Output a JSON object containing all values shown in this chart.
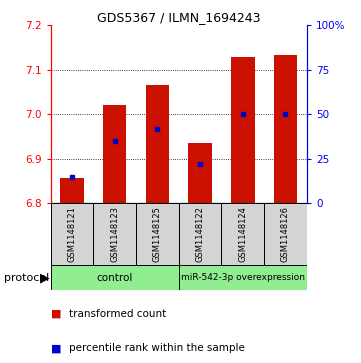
{
  "title": "GDS5367 / ILMN_1694243",
  "samples": [
    "GSM1148121",
    "GSM1148123",
    "GSM1148125",
    "GSM1148122",
    "GSM1148124",
    "GSM1148126"
  ],
  "bar_bottom": 6.8,
  "bar_tops": [
    6.857,
    7.022,
    7.065,
    6.935,
    7.13,
    7.133
  ],
  "blue_percentiles": [
    15,
    35,
    42,
    22,
    50,
    50
  ],
  "ylim_left": [
    6.8,
    7.2
  ],
  "ylim_right": [
    0,
    100
  ],
  "yticks_left": [
    6.8,
    6.9,
    7.0,
    7.1,
    7.2
  ],
  "yticks_right": [
    0,
    25,
    50,
    75,
    100
  ],
  "ytick_labels_right": [
    "0",
    "25",
    "50",
    "75",
    "100%"
  ],
  "bar_color": "#cc1100",
  "marker_color": "#0000cc",
  "group_labels": [
    "control",
    "miR-542-3p overexpression"
  ],
  "group_color": "#90ee90",
  "sample_box_color": "#d4d4d4",
  "protocol_label": "protocol",
  "legend_entries": [
    "transformed count",
    "percentile rank within the sample"
  ],
  "bar_width": 0.55,
  "title_fontsize": 9
}
